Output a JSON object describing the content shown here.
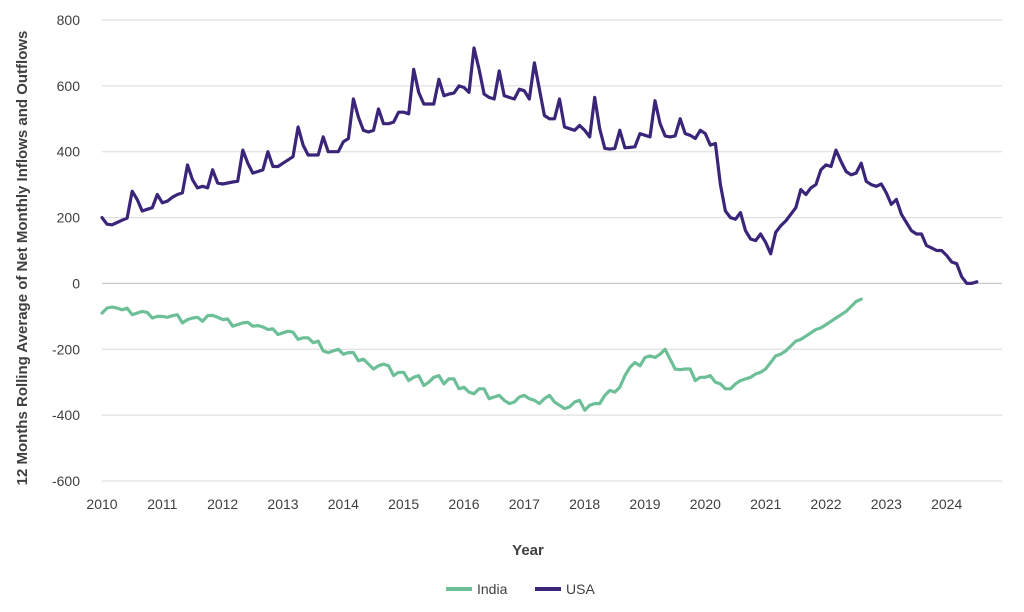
{
  "chart_data": {
    "type": "line",
    "title": "",
    "xlabel": "Year",
    "ylabel": "12 Months Rolling Average of  Net Monthly Inflows and  Outflows",
    "xlim": [
      2010,
      2024.917
    ],
    "ylim": [
      -600,
      800
    ],
    "x_ticks": [
      "2010",
      "2011",
      "2012",
      "2013",
      "2014",
      "2015",
      "2016",
      "2017",
      "2018",
      "2019",
      "2020",
      "2021",
      "2022",
      "2023",
      "2024"
    ],
    "y_ticks": [
      "800",
      "600",
      "400",
      "200",
      "0",
      "-200",
      "-400",
      "-600"
    ],
    "grid": "horizontal",
    "legend_position": "bottom-center",
    "series": [
      {
        "name": "India",
        "color": "#6dbf98",
        "x_start": 2010,
        "x_step": 0.08333,
        "values": [
          -90,
          -75,
          -72,
          -75,
          -80,
          -75,
          -95,
          -90,
          -85,
          -88,
          -105,
          -100,
          -100,
          -103,
          -98,
          -95,
          -120,
          -110,
          -105,
          -103,
          -115,
          -98,
          -97,
          -103,
          -110,
          -108,
          -130,
          -125,
          -120,
          -118,
          -130,
          -128,
          -132,
          -140,
          -138,
          -155,
          -150,
          -145,
          -148,
          -170,
          -165,
          -165,
          -180,
          -175,
          -205,
          -210,
          -205,
          -200,
          -215,
          -210,
          -210,
          -235,
          -230,
          -245,
          -260,
          -250,
          -245,
          -250,
          -280,
          -270,
          -270,
          -295,
          -285,
          -280,
          -310,
          -300,
          -285,
          -280,
          -305,
          -290,
          -290,
          -320,
          -315,
          -330,
          -335,
          -320,
          -320,
          -350,
          -345,
          -340,
          -355,
          -365,
          -360,
          -345,
          -340,
          -350,
          -355,
          -365,
          -350,
          -340,
          -360,
          -370,
          -380,
          -375,
          -360,
          -355,
          -385,
          -370,
          -365,
          -365,
          -340,
          -325,
          -330,
          -315,
          -280,
          -255,
          -240,
          -250,
          -225,
          -220,
          -225,
          -215,
          -200,
          -230,
          -260,
          -262,
          -260,
          -260,
          -295,
          -285,
          -285,
          -280,
          -300,
          -305,
          -320,
          -320,
          -305,
          -295,
          -290,
          -285,
          -275,
          -270,
          -260,
          -240,
          -220,
          -215,
          -205,
          -190,
          -175,
          -170,
          -160,
          -150,
          -140,
          -135,
          -125,
          -115,
          -105,
          -95,
          -85,
          -70,
          -55,
          -48
        ]
      },
      {
        "name": "USA",
        "color": "#3b2579",
        "x_start": 2010,
        "x_step": 0.08333,
        "values": [
          200,
          180,
          178,
          185,
          192,
          198,
          280,
          255,
          220,
          225,
          230,
          270,
          245,
          250,
          262,
          270,
          275,
          360,
          315,
          290,
          295,
          290,
          345,
          305,
          302,
          305,
          308,
          310,
          405,
          365,
          335,
          340,
          345,
          400,
          355,
          355,
          365,
          375,
          385,
          475,
          420,
          390,
          390,
          390,
          445,
          400,
          400,
          400,
          430,
          440,
          560,
          505,
          465,
          460,
          465,
          530,
          485,
          485,
          490,
          520,
          520,
          515,
          650,
          580,
          545,
          545,
          545,
          620,
          570,
          575,
          578,
          600,
          595,
          580,
          715,
          650,
          575,
          565,
          560,
          645,
          570,
          565,
          560,
          590,
          585,
          560,
          670,
          590,
          510,
          500,
          500,
          560,
          475,
          470,
          465,
          480,
          465,
          445,
          565,
          470,
          410,
          408,
          410,
          465,
          412,
          413,
          415,
          455,
          450,
          445,
          555,
          485,
          448,
          445,
          448,
          500,
          455,
          450,
          440,
          465,
          455,
          420,
          425,
          300,
          220,
          200,
          195,
          215,
          160,
          135,
          130,
          150,
          125,
          90,
          155,
          175,
          190,
          210,
          230,
          285,
          270,
          290,
          300,
          345,
          360,
          355,
          405,
          370,
          340,
          330,
          335,
          365,
          310,
          300,
          295,
          302,
          275,
          240,
          255,
          210,
          185,
          160,
          150,
          150,
          115,
          108,
          100,
          100,
          85,
          65,
          60,
          20,
          0,
          0,
          5
        ]
      }
    ]
  }
}
